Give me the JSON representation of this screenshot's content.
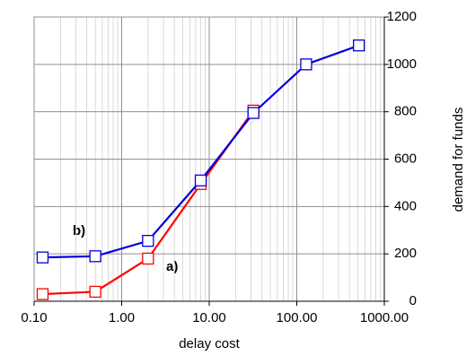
{
  "chart_data": {
    "type": "line",
    "x_label": "delay cost",
    "y_label": "demand for funds",
    "log_x": true,
    "grid": true,
    "minor_grid": true,
    "y_axis_side": "right",
    "xlim": [
      0.1,
      1000
    ],
    "xticks": [
      {
        "value": 0.1,
        "label": "0.10"
      },
      {
        "value": 1,
        "label": "1.00"
      },
      {
        "value": 10,
        "label": "10.00"
      },
      {
        "value": 100,
        "label": "100.00"
      },
      {
        "value": 1000,
        "label": "1000.00"
      }
    ],
    "ylim": [
      0,
      1200
    ],
    "yticks": [
      0,
      200,
      400,
      600,
      800,
      1000,
      1200
    ],
    "annotations": [
      "a)",
      "b)"
    ],
    "series": [
      {
        "color": "#ff0000",
        "x": [
          0.125,
          0.5,
          2,
          8,
          32
        ],
        "values": [
          30,
          40,
          180,
          495,
          805
        ]
      },
      {
        "color": "#0000dd",
        "x": [
          0.125,
          0.5,
          2,
          8,
          32,
          128,
          512
        ],
        "values": [
          185,
          190,
          255,
          510,
          795,
          1000,
          1080
        ]
      }
    ]
  }
}
